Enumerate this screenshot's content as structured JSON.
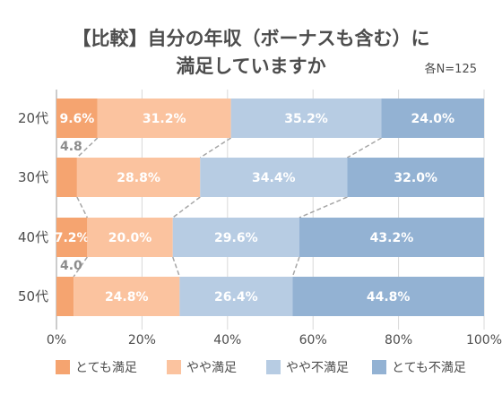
{
  "chart_data": {
    "type": "bar",
    "orientation": "horizontal",
    "stacked": true,
    "title_lines": [
      "【比較】自分の年収（ボーナスも含む）に",
      "満足していますか"
    ],
    "note": "各N=125",
    "categories": [
      "20代",
      "30代",
      "40代",
      "50代"
    ],
    "series": [
      {
        "name": "とても満足",
        "color": "#f5a470",
        "values": [
          9.6,
          4.8,
          7.2,
          4.0
        ]
      },
      {
        "name": "やや満足",
        "color": "#fbc39f",
        "values": [
          31.2,
          28.8,
          20.0,
          24.8
        ]
      },
      {
        "name": "やや不満足",
        "color": "#b7cce3",
        "values": [
          35.2,
          34.4,
          29.6,
          26.4
        ]
      },
      {
        "name": "とても不満足",
        "color": "#93b2d3",
        "values": [
          24.0,
          32.0,
          43.2,
          44.8
        ]
      }
    ],
    "data_labels": [
      [
        "9.6%",
        "31.2%",
        "35.2%",
        "24.0%"
      ],
      [
        "4.8",
        "28.8%",
        "34.4%",
        "32.0%"
      ],
      [
        "7.2%",
        "20.0%",
        "29.6%",
        "43.2%"
      ],
      [
        "4.0",
        "24.8%",
        "26.4%",
        "44.8%"
      ]
    ],
    "xlim": [
      0,
      100
    ],
    "x_ticks": [
      "0%",
      "20%",
      "40%",
      "60%",
      "80%",
      "100%"
    ],
    "grid": true,
    "legend_position": "bottom",
    "connector_lines": true
  }
}
